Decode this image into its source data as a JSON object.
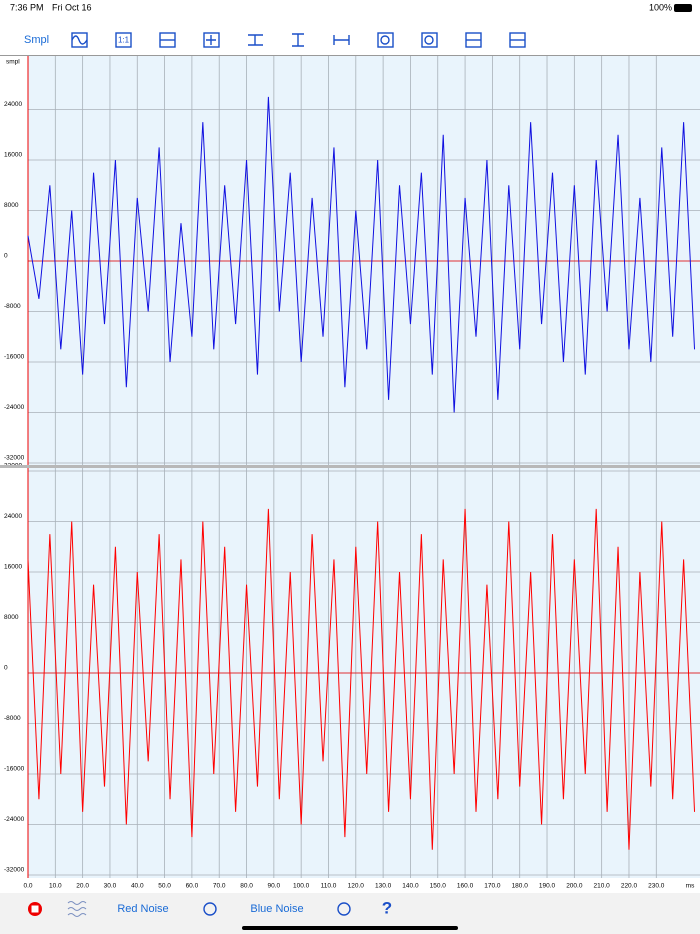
{
  "status_bar": {
    "time": "7:36 PM",
    "date": "Fri Oct 16",
    "battery": "100%"
  },
  "toolbar": {
    "mode": "Smpl",
    "zoom_reset": "1:1"
  },
  "bottom_bar": {
    "red": "Red Noise",
    "blue": "Blue Noise",
    "help": "?"
  },
  "chart_data": [
    {
      "type": "line",
      "y_label": "smpl",
      "color": "#1010e0",
      "grid": true,
      "xlim": [
        0,
        246
      ],
      "ylim": [
        -32000,
        32000
      ],
      "yticks": [
        -32000,
        -24000,
        -16000,
        -8000,
        0,
        8000,
        16000,
        24000
      ],
      "x": [
        0,
        4,
        8,
        12,
        16,
        20,
        24,
        28,
        32,
        36,
        40,
        44,
        48,
        52,
        56,
        60,
        64,
        68,
        72,
        76,
        80,
        84,
        88,
        92,
        96,
        100,
        104,
        108,
        112,
        116,
        120,
        124,
        128,
        132,
        136,
        140,
        144,
        148,
        152,
        156,
        160,
        164,
        168,
        172,
        176,
        180,
        184,
        188,
        192,
        196,
        200,
        204,
        208,
        212,
        216,
        220,
        224,
        228,
        232,
        236,
        240,
        244
      ],
      "values": [
        4000,
        -6000,
        12000,
        -14000,
        8000,
        -18000,
        14000,
        -10000,
        16000,
        -20000,
        10000,
        -8000,
        18000,
        -16000,
        6000,
        -12000,
        22000,
        -14000,
        12000,
        -10000,
        16000,
        -18000,
        26000,
        -8000,
        14000,
        -16000,
        10000,
        -12000,
        18000,
        -20000,
        8000,
        -14000,
        16000,
        -22000,
        12000,
        -10000,
        14000,
        -18000,
        20000,
        -24000,
        10000,
        -12000,
        16000,
        -22000,
        12000,
        -14000,
        22000,
        -10000,
        14000,
        -16000,
        12000,
        -18000,
        16000,
        -8000,
        20000,
        -14000,
        10000,
        -16000,
        18000,
        -12000,
        22000,
        -14000
      ]
    },
    {
      "type": "line",
      "x_label": "ms",
      "color": "#ff0000",
      "grid": true,
      "xlim": [
        0,
        246
      ],
      "ylim": [
        -32000,
        32000
      ],
      "yticks": [
        -32000,
        -24000,
        -16000,
        -8000,
        0,
        8000,
        16000,
        24000,
        32000
      ],
      "xticks": [
        {
          "value": 0,
          "label": "0.0"
        },
        {
          "value": 10,
          "label": "10.0"
        },
        {
          "value": 20,
          "label": "20.0"
        },
        {
          "value": 30,
          "label": "30.0"
        },
        {
          "value": 40,
          "label": "40.0"
        },
        {
          "value": 50,
          "label": "50.0"
        },
        {
          "value": 60,
          "label": "60.0"
        },
        {
          "value": 70,
          "label": "70.0"
        },
        {
          "value": 80,
          "label": "80.0"
        },
        {
          "value": 90,
          "label": "90.0"
        },
        {
          "value": 100,
          "label": "100.0"
        },
        {
          "value": 110,
          "label": "110.0"
        },
        {
          "value": 120,
          "label": "120.0"
        },
        {
          "value": 130,
          "label": "130.0"
        },
        {
          "value": 140,
          "label": "140.0"
        },
        {
          "value": 150,
          "label": "150.0"
        },
        {
          "value": 160,
          "label": "160.0"
        },
        {
          "value": 170,
          "label": "170.0"
        },
        {
          "value": 180,
          "label": "180.0"
        },
        {
          "value": 190,
          "label": "190.0"
        },
        {
          "value": 200,
          "label": "200.0"
        },
        {
          "value": 210,
          "label": "210.0"
        },
        {
          "value": 220,
          "label": "220.0"
        },
        {
          "value": 230,
          "label": "230.0"
        }
      ],
      "x": [
        0,
        4,
        8,
        12,
        16,
        20,
        24,
        28,
        32,
        36,
        40,
        44,
        48,
        52,
        56,
        60,
        64,
        68,
        72,
        76,
        80,
        84,
        88,
        92,
        96,
        100,
        104,
        108,
        112,
        116,
        120,
        124,
        128,
        132,
        136,
        140,
        144,
        148,
        152,
        156,
        160,
        164,
        168,
        172,
        176,
        180,
        184,
        188,
        192,
        196,
        200,
        204,
        208,
        212,
        216,
        220,
        224,
        228,
        232,
        236,
        240,
        244
      ],
      "values": [
        18000,
        -20000,
        22000,
        -16000,
        24000,
        -22000,
        14000,
        -18000,
        20000,
        -24000,
        16000,
        -14000,
        22000,
        -20000,
        18000,
        -26000,
        24000,
        -16000,
        20000,
        -22000,
        14000,
        -18000,
        26000,
        -20000,
        16000,
        -24000,
        22000,
        -14000,
        18000,
        -26000,
        20000,
        -16000,
        24000,
        -22000,
        16000,
        -20000,
        22000,
        -28000,
        18000,
        -16000,
        26000,
        -22000,
        14000,
        -20000,
        24000,
        -18000,
        16000,
        -24000,
        22000,
        -20000,
        18000,
        -16000,
        26000,
        -22000,
        20000,
        -28000,
        16000,
        -18000,
        24000,
        -20000,
        18000,
        -22000
      ]
    }
  ]
}
